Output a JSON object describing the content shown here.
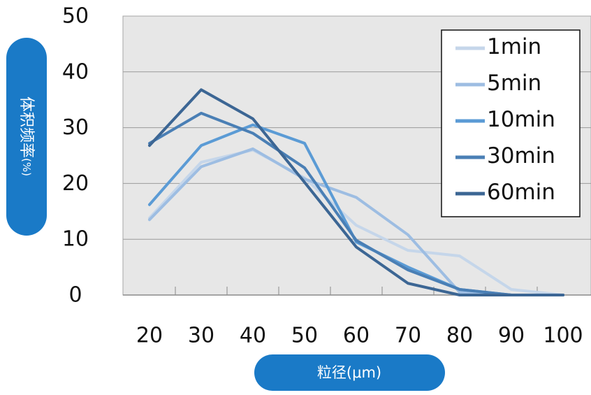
{
  "chart_data": {
    "type": "line",
    "ylabel_main": "体积频率",
    "ylabel_unit": "(%)",
    "xlabel": "粒径(μm)",
    "categories": [
      20,
      30,
      40,
      50,
      60,
      70,
      80,
      90,
      100
    ],
    "x_tick_labels": [
      "20",
      "30",
      "40",
      "50",
      "60",
      "70",
      "80",
      "90",
      "100"
    ],
    "ylim": [
      0,
      50
    ],
    "y_ticks": [
      0,
      10,
      20,
      30,
      40,
      50
    ],
    "y_tick_labels": [
      "0",
      "10",
      "20",
      "30",
      "40",
      "50"
    ],
    "grid": true,
    "legend_position": "top-right",
    "label_color": "#1a7ac7",
    "series": [
      {
        "name": "1min",
        "color": "#c5d6ea",
        "values": [
          13.8,
          23.8,
          26.0,
          21.0,
          12.5,
          8.0,
          7.0,
          1.0,
          0.0
        ]
      },
      {
        "name": "5min",
        "color": "#9dbde2",
        "values": [
          13.5,
          23.0,
          26.2,
          20.8,
          17.5,
          10.8,
          0.5,
          0.0,
          0.0
        ]
      },
      {
        "name": "10min",
        "color": "#5b9bd5",
        "values": [
          16.2,
          26.8,
          30.5,
          27.2,
          9.5,
          5.0,
          1.0,
          0.0,
          0.0
        ]
      },
      {
        "name": "30min",
        "color": "#4a7fb5",
        "values": [
          27.2,
          32.6,
          29.0,
          22.8,
          9.8,
          4.5,
          1.0,
          0.0,
          0.0
        ]
      },
      {
        "name": "60min",
        "color": "#3c6694",
        "values": [
          26.8,
          36.8,
          31.6,
          20.2,
          8.6,
          2.1,
          0.0,
          0.0,
          0.0
        ]
      }
    ]
  }
}
